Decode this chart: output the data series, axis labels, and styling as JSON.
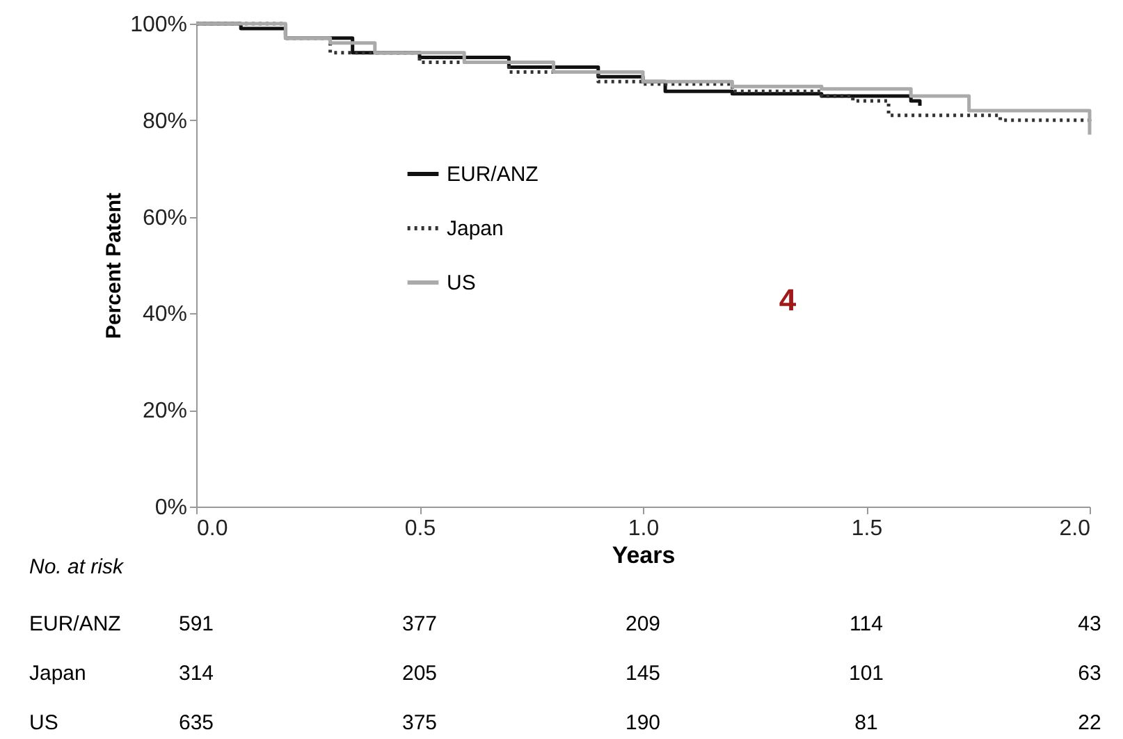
{
  "chart_data": {
    "type": "step",
    "xlabel": "Years",
    "ylabel": "Percent Patent",
    "xlim": [
      0,
      2
    ],
    "ylim": [
      0,
      100
    ],
    "xticks": [
      {
        "value": 0,
        "label": "0.0"
      },
      {
        "value": 0.5,
        "label": "0.5"
      },
      {
        "value": 1,
        "label": "1.0"
      },
      {
        "value": 1.5,
        "label": "1.5"
      },
      {
        "value": 2,
        "label": "2.0"
      }
    ],
    "yticks": [
      {
        "value": 0,
        "label": "0%"
      },
      {
        "value": 20,
        "label": "20%"
      },
      {
        "value": 40,
        "label": "40%"
      },
      {
        "value": 60,
        "label": "60%"
      },
      {
        "value": 80,
        "label": "80%"
      },
      {
        "value": 100,
        "label": "100%"
      }
    ],
    "grid": false,
    "legend": "left",
    "marker": "none",
    "series": [
      {
        "name": "EUR/ANZ",
        "color": "#111111",
        "line_style": "solid",
        "x": [
          0,
          0.1,
          0.2,
          0.35,
          0.5,
          0.7,
          0.9,
          1.0,
          1.05,
          1.2,
          1.4,
          1.6,
          1.62
        ],
        "values": [
          100,
          99,
          97,
          94,
          93,
          91,
          89,
          88,
          86,
          85.5,
          85,
          84,
          83
        ]
      },
      {
        "name": "Japan",
        "color": "#333333",
        "line_style": "dotted",
        "x": [
          0,
          0.2,
          0.3,
          0.5,
          0.7,
          0.9,
          1.0,
          1.2,
          1.4,
          1.47,
          1.55,
          1.8,
          2.0
        ],
        "values": [
          100,
          97,
          94,
          92,
          90,
          88,
          87.5,
          86,
          85,
          84,
          81,
          80,
          79
        ]
      },
      {
        "name": "US",
        "color": "#aaaaaa",
        "line_style": "solid",
        "x": [
          0,
          0.2,
          0.3,
          0.4,
          0.6,
          0.8,
          1.0,
          1.2,
          1.4,
          1.6,
          1.68,
          1.73,
          2.0
        ],
        "values": [
          100,
          97,
          96,
          94,
          92,
          90,
          88,
          87,
          86.5,
          85,
          85,
          82,
          77
        ]
      }
    ],
    "annotations": [
      "No. at risk",
      "EUR/ANZ",
      "591",
      "377",
      "209",
      "114",
      "43",
      "Japan",
      "314",
      "205",
      "145",
      "101",
      "63",
      "US",
      "635",
      "375",
      "190",
      "81",
      "22",
      "4"
    ]
  }
}
